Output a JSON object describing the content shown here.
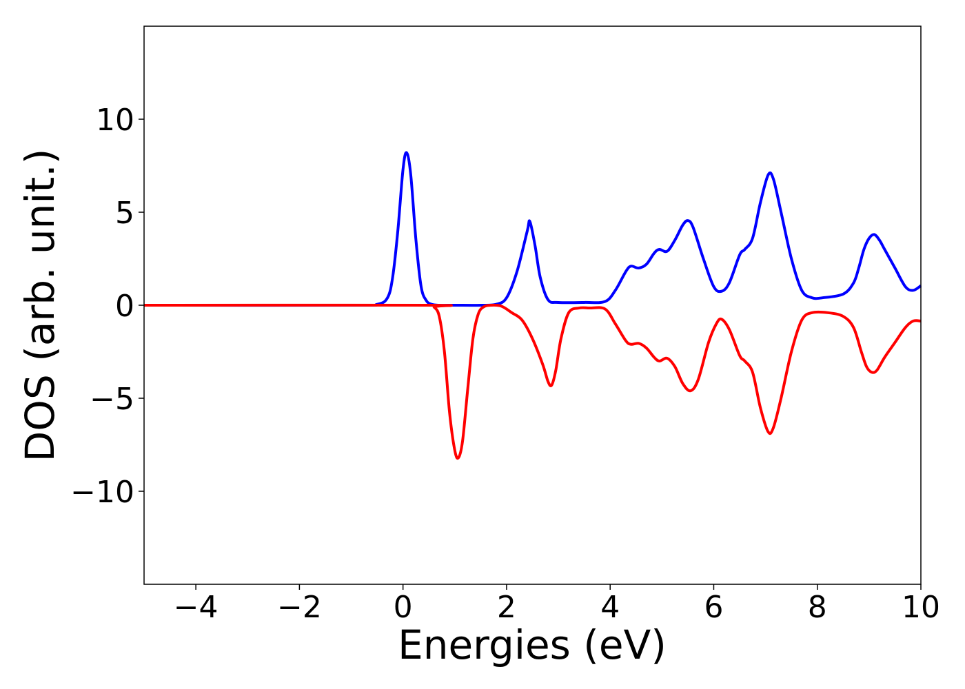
{
  "chart_data": {
    "type": "line",
    "xlabel": "Energies (eV)",
    "ylabel": "DOS (arb. unit.)",
    "xlim": [
      -5,
      10
    ],
    "ylim": [
      -15,
      15
    ],
    "x_ticks": [
      -4,
      -2,
      0,
      2,
      4,
      6,
      8,
      10
    ],
    "y_ticks": [
      -10,
      -5,
      0,
      5,
      10
    ],
    "x_tick_labels": [
      "−4",
      "−2",
      "0",
      "2",
      "4",
      "6",
      "8",
      "10"
    ],
    "y_tick_labels": [
      "−10",
      "−5",
      "0",
      "5",
      "10"
    ],
    "grid": false,
    "legend": "none",
    "series": [
      {
        "color": "#0000ff",
        "x": [
          -5,
          -1,
          -0.5,
          -0.3,
          -0.2,
          -0.1,
          0,
          0.07,
          0.15,
          0.25,
          0.35,
          0.45,
          0.55,
          0.7,
          1.0,
          1.5,
          1.8,
          2.0,
          2.2,
          2.4,
          2.45,
          2.55,
          2.65,
          2.8,
          3.0,
          3.5,
          3.9,
          4.1,
          4.3,
          4.4,
          4.55,
          4.7,
          4.85,
          4.95,
          5.1,
          5.25,
          5.4,
          5.5,
          5.6,
          5.8,
          6.0,
          6.15,
          6.3,
          6.5,
          6.6,
          6.75,
          6.9,
          7.05,
          7.15,
          7.3,
          7.5,
          7.7,
          7.9,
          8.1,
          8.5,
          8.7,
          8.8,
          8.9,
          9.0,
          9.1,
          9.2,
          9.3,
          9.5,
          9.7,
          9.85,
          10
        ],
        "values": [
          0,
          0,
          0.05,
          0.4,
          1.5,
          4.0,
          7.3,
          8.2,
          7.0,
          3.5,
          1.0,
          0.25,
          0.05,
          0,
          0,
          0,
          0.05,
          0.4,
          1.8,
          4.0,
          4.5,
          3.2,
          1.5,
          0.3,
          0.15,
          0.15,
          0.2,
          0.8,
          1.8,
          2.1,
          2.0,
          2.2,
          2.8,
          3.0,
          2.9,
          3.5,
          4.3,
          4.55,
          4.2,
          2.5,
          1.0,
          0.75,
          1.2,
          2.7,
          3.0,
          3.6,
          5.5,
          7.0,
          6.8,
          5.0,
          2.5,
          0.8,
          0.4,
          0.4,
          0.6,
          1.2,
          2.0,
          3.0,
          3.6,
          3.8,
          3.5,
          3.0,
          2.0,
          1.0,
          0.8,
          1.05
        ]
      },
      {
        "color": "#ff0000",
        "x": [
          -5,
          0.5,
          0.6,
          0.7,
          0.8,
          0.9,
          1.0,
          1.07,
          1.15,
          1.25,
          1.35,
          1.45,
          1.55,
          1.7,
          1.9,
          2.1,
          2.3,
          2.5,
          2.7,
          2.8,
          2.87,
          2.95,
          3.05,
          3.2,
          3.4,
          3.6,
          3.9,
          4.1,
          4.3,
          4.4,
          4.55,
          4.7,
          4.85,
          4.95,
          5.1,
          5.25,
          5.4,
          5.55,
          5.7,
          5.9,
          6.05,
          6.15,
          6.3,
          6.5,
          6.6,
          6.75,
          6.9,
          7.05,
          7.15,
          7.3,
          7.5,
          7.7,
          7.9,
          8.2,
          8.5,
          8.7,
          8.85,
          8.95,
          9.05,
          9.15,
          9.3,
          9.5,
          9.7,
          9.85,
          10
        ],
        "values": [
          0,
          0,
          -0.1,
          -0.6,
          -2.5,
          -5.8,
          -7.8,
          -8.2,
          -7.3,
          -4.5,
          -1.8,
          -0.5,
          -0.1,
          0,
          -0.05,
          -0.4,
          -0.8,
          -1.8,
          -3.2,
          -4.1,
          -4.3,
          -3.5,
          -1.8,
          -0.4,
          -0.15,
          -0.15,
          -0.2,
          -1.0,
          -1.9,
          -2.1,
          -2.05,
          -2.3,
          -2.8,
          -3.0,
          -2.85,
          -3.3,
          -4.2,
          -4.6,
          -4.0,
          -2.0,
          -1.0,
          -0.75,
          -1.3,
          -2.7,
          -3.0,
          -3.6,
          -5.5,
          -6.8,
          -6.6,
          -5.0,
          -2.5,
          -0.8,
          -0.4,
          -0.4,
          -0.6,
          -1.2,
          -2.5,
          -3.3,
          -3.6,
          -3.5,
          -2.8,
          -2.0,
          -1.2,
          -0.85,
          -0.85
        ]
      }
    ]
  }
}
